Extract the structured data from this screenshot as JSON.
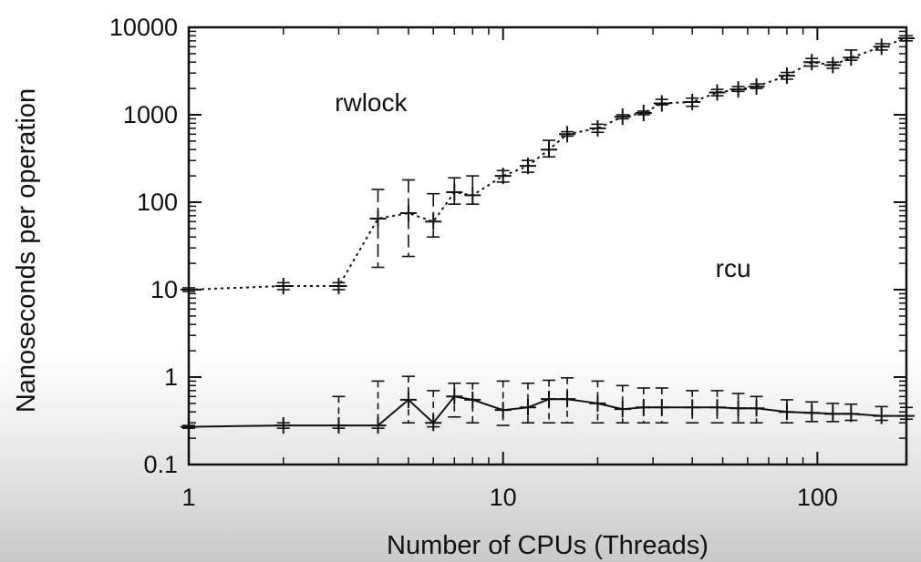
{
  "chart_data": {
    "type": "line",
    "title": "",
    "xlabel": "Number of CPUs (Threads)",
    "ylabel": "Nanoseconds per operation",
    "x_scale": "log",
    "y_scale": "log",
    "xlim": [
      1,
      192
    ],
    "ylim": [
      0.1,
      10000
    ],
    "x_ticks": [
      {
        "value": 1,
        "label": "1"
      },
      {
        "value": 10,
        "label": "10"
      },
      {
        "value": 100,
        "label": "100"
      }
    ],
    "y_ticks": [
      {
        "value": 0.1,
        "label": "0.1"
      },
      {
        "value": 1,
        "label": "1"
      },
      {
        "value": 10,
        "label": "10"
      },
      {
        "value": 100,
        "label": "100"
      },
      {
        "value": 1000,
        "label": "1000"
      },
      {
        "value": 10000,
        "label": "10000"
      }
    ],
    "grid": false,
    "legend": "none",
    "annotations": [
      {
        "text": "rwlock",
        "x": 3.8,
        "y": 1100
      },
      {
        "text": "rcu",
        "x": 54,
        "y": 14
      }
    ],
    "series": [
      {
        "name": "rwlock",
        "line_style": "dotted",
        "color": "#111111",
        "x": [
          1,
          2,
          3,
          4,
          5,
          6,
          7,
          8,
          10,
          12,
          14,
          16,
          20,
          24,
          28,
          32,
          40,
          48,
          56,
          64,
          80,
          96,
          112,
          128,
          160,
          192
        ],
        "y": [
          10,
          11,
          11,
          65,
          75,
          60,
          130,
          120,
          200,
          260,
          400,
          600,
          700,
          950,
          1050,
          1350,
          1400,
          1800,
          1950,
          2100,
          2800,
          4000,
          3700,
          4500,
          6000,
          7500
        ],
        "y_err_low": [
          9.5,
          10,
          10,
          18,
          24,
          40,
          95,
          95,
          170,
          220,
          330,
          570,
          630,
          900,
          1000,
          1300,
          1250,
          1650,
          1850,
          2000,
          2550,
          3600,
          3400,
          4200,
          5500,
          7000
        ],
        "y_err_high": [
          10.5,
          12,
          12,
          140,
          180,
          125,
          190,
          200,
          230,
          300,
          510,
          640,
          780,
          1000,
          1100,
          1500,
          1550,
          1950,
          2100,
          2250,
          3050,
          4400,
          4000,
          5500,
          6500,
          8000
        ]
      },
      {
        "name": "rcu",
        "line_style": "solid",
        "color": "#111111",
        "x": [
          1,
          2,
          3,
          4,
          5,
          6,
          7,
          8,
          10,
          12,
          14,
          16,
          20,
          24,
          28,
          32,
          40,
          48,
          56,
          64,
          80,
          96,
          112,
          128,
          160,
          192
        ],
        "y": [
          0.27,
          0.28,
          0.28,
          0.28,
          0.55,
          0.3,
          0.6,
          0.55,
          0.42,
          0.45,
          0.56,
          0.56,
          0.5,
          0.43,
          0.45,
          0.45,
          0.45,
          0.45,
          0.44,
          0.44,
          0.4,
          0.39,
          0.38,
          0.38,
          0.36,
          0.36
        ],
        "y_err_low": [
          0.26,
          0.26,
          0.26,
          0.26,
          0.3,
          0.27,
          0.35,
          0.3,
          0.28,
          0.3,
          0.3,
          0.3,
          0.3,
          0.3,
          0.3,
          0.3,
          0.3,
          0.3,
          0.3,
          0.3,
          0.3,
          0.31,
          0.31,
          0.32,
          0.32,
          0.33
        ],
        "y_err_high": [
          0.28,
          0.3,
          0.6,
          0.9,
          1.02,
          0.7,
          0.85,
          0.85,
          0.9,
          0.85,
          0.92,
          0.98,
          0.9,
          0.8,
          0.75,
          0.75,
          0.7,
          0.7,
          0.65,
          0.6,
          0.55,
          0.52,
          0.5,
          0.49,
          0.46,
          0.45
        ]
      }
    ]
  }
}
